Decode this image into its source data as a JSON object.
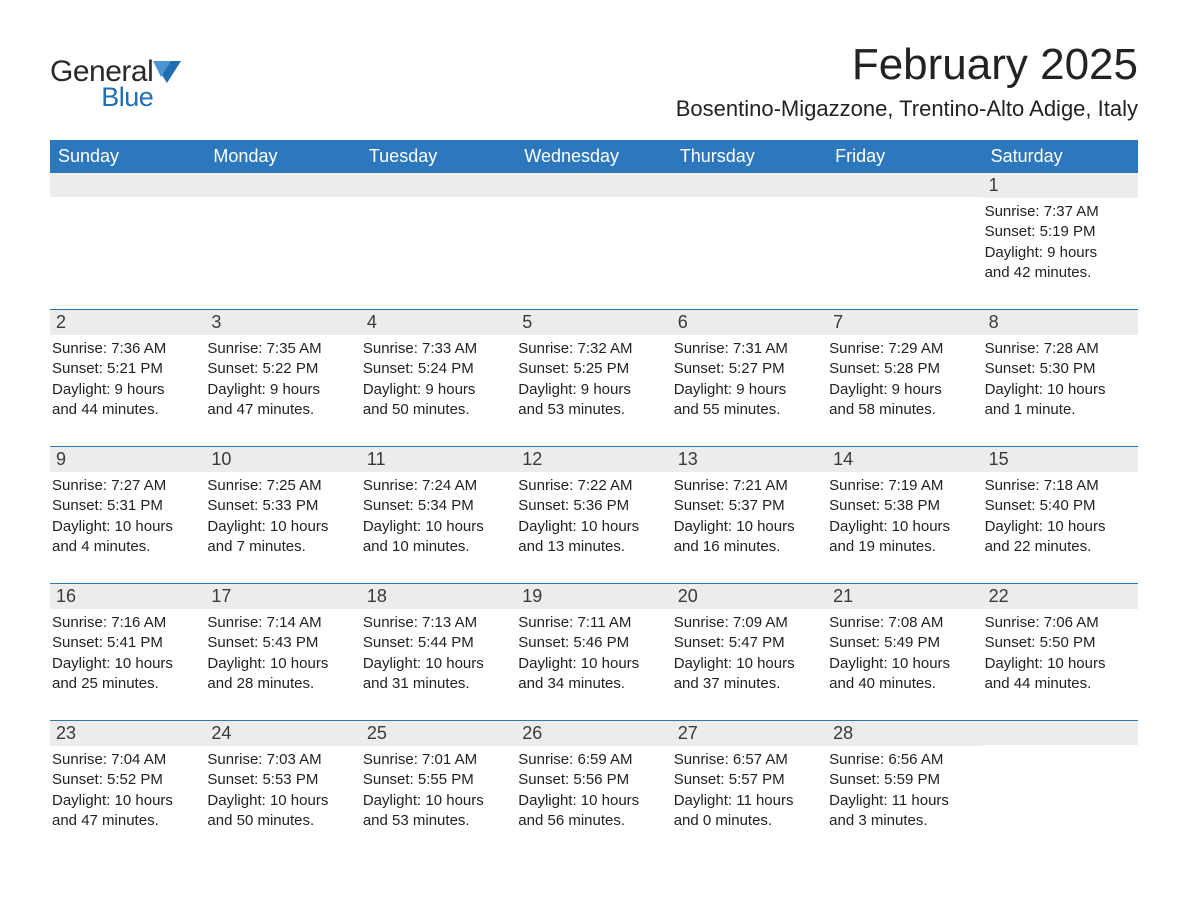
{
  "brand": {
    "name_general": "General",
    "name_blue": "Blue",
    "flag_color": "#1f6fb2"
  },
  "header": {
    "month_title": "February 2025",
    "location": "Bosentino-Migazzone, Trentino-Alto Adige, Italy"
  },
  "styling": {
    "header_bg": "#2d78bd",
    "header_text": "#ffffff",
    "daynum_bg": "#ececec",
    "body_text": "#222222",
    "rule_color": "#2d78bd",
    "page_bg": "#ffffff",
    "title_fontsize": 44,
    "location_fontsize": 22,
    "weekday_fontsize": 18,
    "body_fontsize": 15
  },
  "weekdays": [
    "Sunday",
    "Monday",
    "Tuesday",
    "Wednesday",
    "Thursday",
    "Friday",
    "Saturday"
  ],
  "weeks": [
    [
      {
        "empty": true
      },
      {
        "empty": true
      },
      {
        "empty": true
      },
      {
        "empty": true
      },
      {
        "empty": true
      },
      {
        "empty": true
      },
      {
        "num": "1",
        "sunrise": "Sunrise: 7:37 AM",
        "sunset": "Sunset: 5:19 PM",
        "day1": "Daylight: 9 hours",
        "day2": "and 42 minutes."
      }
    ],
    [
      {
        "num": "2",
        "sunrise": "Sunrise: 7:36 AM",
        "sunset": "Sunset: 5:21 PM",
        "day1": "Daylight: 9 hours",
        "day2": "and 44 minutes."
      },
      {
        "num": "3",
        "sunrise": "Sunrise: 7:35 AM",
        "sunset": "Sunset: 5:22 PM",
        "day1": "Daylight: 9 hours",
        "day2": "and 47 minutes."
      },
      {
        "num": "4",
        "sunrise": "Sunrise: 7:33 AM",
        "sunset": "Sunset: 5:24 PM",
        "day1": "Daylight: 9 hours",
        "day2": "and 50 minutes."
      },
      {
        "num": "5",
        "sunrise": "Sunrise: 7:32 AM",
        "sunset": "Sunset: 5:25 PM",
        "day1": "Daylight: 9 hours",
        "day2": "and 53 minutes."
      },
      {
        "num": "6",
        "sunrise": "Sunrise: 7:31 AM",
        "sunset": "Sunset: 5:27 PM",
        "day1": "Daylight: 9 hours",
        "day2": "and 55 minutes."
      },
      {
        "num": "7",
        "sunrise": "Sunrise: 7:29 AM",
        "sunset": "Sunset: 5:28 PM",
        "day1": "Daylight: 9 hours",
        "day2": "and 58 minutes."
      },
      {
        "num": "8",
        "sunrise": "Sunrise: 7:28 AM",
        "sunset": "Sunset: 5:30 PM",
        "day1": "Daylight: 10 hours",
        "day2": "and 1 minute."
      }
    ],
    [
      {
        "num": "9",
        "sunrise": "Sunrise: 7:27 AM",
        "sunset": "Sunset: 5:31 PM",
        "day1": "Daylight: 10 hours",
        "day2": "and 4 minutes."
      },
      {
        "num": "10",
        "sunrise": "Sunrise: 7:25 AM",
        "sunset": "Sunset: 5:33 PM",
        "day1": "Daylight: 10 hours",
        "day2": "and 7 minutes."
      },
      {
        "num": "11",
        "sunrise": "Sunrise: 7:24 AM",
        "sunset": "Sunset: 5:34 PM",
        "day1": "Daylight: 10 hours",
        "day2": "and 10 minutes."
      },
      {
        "num": "12",
        "sunrise": "Sunrise: 7:22 AM",
        "sunset": "Sunset: 5:36 PM",
        "day1": "Daylight: 10 hours",
        "day2": "and 13 minutes."
      },
      {
        "num": "13",
        "sunrise": "Sunrise: 7:21 AM",
        "sunset": "Sunset: 5:37 PM",
        "day1": "Daylight: 10 hours",
        "day2": "and 16 minutes."
      },
      {
        "num": "14",
        "sunrise": "Sunrise: 7:19 AM",
        "sunset": "Sunset: 5:38 PM",
        "day1": "Daylight: 10 hours",
        "day2": "and 19 minutes."
      },
      {
        "num": "15",
        "sunrise": "Sunrise: 7:18 AM",
        "sunset": "Sunset: 5:40 PM",
        "day1": "Daylight: 10 hours",
        "day2": "and 22 minutes."
      }
    ],
    [
      {
        "num": "16",
        "sunrise": "Sunrise: 7:16 AM",
        "sunset": "Sunset: 5:41 PM",
        "day1": "Daylight: 10 hours",
        "day2": "and 25 minutes."
      },
      {
        "num": "17",
        "sunrise": "Sunrise: 7:14 AM",
        "sunset": "Sunset: 5:43 PM",
        "day1": "Daylight: 10 hours",
        "day2": "and 28 minutes."
      },
      {
        "num": "18",
        "sunrise": "Sunrise: 7:13 AM",
        "sunset": "Sunset: 5:44 PM",
        "day1": "Daylight: 10 hours",
        "day2": "and 31 minutes."
      },
      {
        "num": "19",
        "sunrise": "Sunrise: 7:11 AM",
        "sunset": "Sunset: 5:46 PM",
        "day1": "Daylight: 10 hours",
        "day2": "and 34 minutes."
      },
      {
        "num": "20",
        "sunrise": "Sunrise: 7:09 AM",
        "sunset": "Sunset: 5:47 PM",
        "day1": "Daylight: 10 hours",
        "day2": "and 37 minutes."
      },
      {
        "num": "21",
        "sunrise": "Sunrise: 7:08 AM",
        "sunset": "Sunset: 5:49 PM",
        "day1": "Daylight: 10 hours",
        "day2": "and 40 minutes."
      },
      {
        "num": "22",
        "sunrise": "Sunrise: 7:06 AM",
        "sunset": "Sunset: 5:50 PM",
        "day1": "Daylight: 10 hours",
        "day2": "and 44 minutes."
      }
    ],
    [
      {
        "num": "23",
        "sunrise": "Sunrise: 7:04 AM",
        "sunset": "Sunset: 5:52 PM",
        "day1": "Daylight: 10 hours",
        "day2": "and 47 minutes."
      },
      {
        "num": "24",
        "sunrise": "Sunrise: 7:03 AM",
        "sunset": "Sunset: 5:53 PM",
        "day1": "Daylight: 10 hours",
        "day2": "and 50 minutes."
      },
      {
        "num": "25",
        "sunrise": "Sunrise: 7:01 AM",
        "sunset": "Sunset: 5:55 PM",
        "day1": "Daylight: 10 hours",
        "day2": "and 53 minutes."
      },
      {
        "num": "26",
        "sunrise": "Sunrise: 6:59 AM",
        "sunset": "Sunset: 5:56 PM",
        "day1": "Daylight: 10 hours",
        "day2": "and 56 minutes."
      },
      {
        "num": "27",
        "sunrise": "Sunrise: 6:57 AM",
        "sunset": "Sunset: 5:57 PM",
        "day1": "Daylight: 11 hours",
        "day2": "and 0 minutes."
      },
      {
        "num": "28",
        "sunrise": "Sunrise: 6:56 AM",
        "sunset": "Sunset: 5:59 PM",
        "day1": "Daylight: 11 hours",
        "day2": "and 3 minutes."
      },
      {
        "empty": true
      }
    ]
  ]
}
